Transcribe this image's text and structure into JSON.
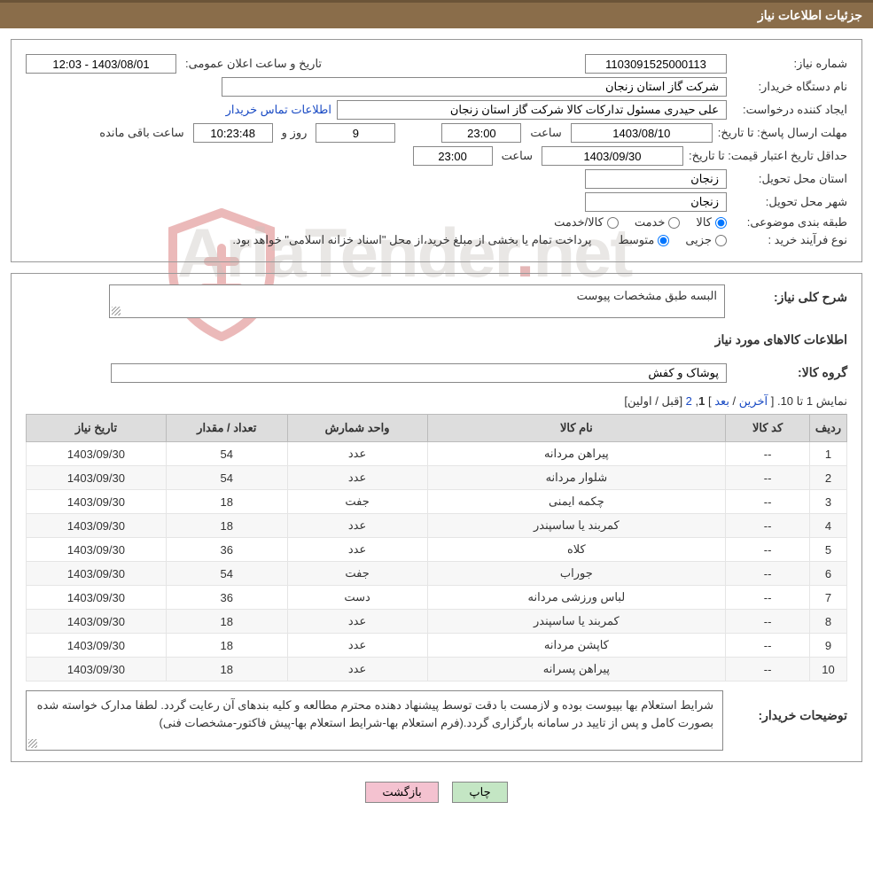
{
  "header": {
    "title": "جزئیات اطلاعات نیاز"
  },
  "form": {
    "need_number_label": "شماره نیاز:",
    "need_number": "1103091525000113",
    "announce_label": "تاریخ و ساعت اعلان عمومی:",
    "announce_value": "1403/08/01 - 12:03",
    "buyer_org_label": "نام دستگاه خریدار:",
    "buyer_org": "شرکت گاز استان زنجان",
    "requester_label": "ایجاد کننده درخواست:",
    "requester": "علی حیدری مسئول تدارکات کالا شرکت گاز استان زنجان",
    "buyer_contact_link": "اطلاعات تماس خریدار",
    "deadline_label": "مهلت ارسال پاسخ: تا تاریخ:",
    "deadline_date": "1403/08/10",
    "hour_label": "ساعت",
    "deadline_time": "23:00",
    "days_remaining": "9",
    "days_and_label": "روز و",
    "time_remaining": "10:23:48",
    "remaining_label": "ساعت باقی مانده",
    "validity_label": "حداقل تاریخ اعتبار قیمت: تا تاریخ:",
    "validity_date": "1403/09/30",
    "validity_time": "23:00",
    "province_label": "استان محل تحویل:",
    "province": "زنجان",
    "city_label": "شهر محل تحویل:",
    "city": "زنجان",
    "category_label": "طبقه بندی موضوعی:",
    "cat_goods": "کالا",
    "cat_service": "خدمت",
    "cat_goods_service": "کالا/خدمت",
    "process_label": "نوع فرآیند خرید :",
    "proc_partial": "جزیی",
    "proc_medium": "متوسط",
    "payment_note": "پرداخت تمام یا بخشی از مبلغ خرید،از محل \"اسناد خزانه اسلامی\" خواهد بود."
  },
  "desc": {
    "general_label": "شرح کلی نیاز:",
    "general_text": "البسه طبق مشخصات پیوست",
    "items_label": "اطلاعات کالاهای مورد نیاز",
    "group_label": "گروه کالا:",
    "group_value": "پوشاک و کفش"
  },
  "paging": {
    "prefix": "نمایش 1 تا 10. [ ",
    "last": "آخرین",
    "sep1": " / ",
    "next": "بعد",
    "sep2": " ] ",
    "current": "1",
    "comma": ", ",
    "page2": "2",
    "sep3": " [",
    "prev": "قبل",
    "sep4": " / ",
    "first": "اولین",
    "close": "]"
  },
  "table": {
    "headers": {
      "row": "ردیف",
      "code": "کد کالا",
      "name": "نام کالا",
      "unit": "واحد شمارش",
      "qty": "تعداد / مقدار",
      "date": "تاریخ نیاز"
    },
    "rows": [
      {
        "n": "1",
        "code": "--",
        "name": "پیراهن مردانه",
        "unit": "عدد",
        "qty": "54",
        "date": "1403/09/30"
      },
      {
        "n": "2",
        "code": "--",
        "name": "شلوار مردانه",
        "unit": "عدد",
        "qty": "54",
        "date": "1403/09/30"
      },
      {
        "n": "3",
        "code": "--",
        "name": "چکمه ایمنی",
        "unit": "جفت",
        "qty": "18",
        "date": "1403/09/30"
      },
      {
        "n": "4",
        "code": "--",
        "name": "کمربند یا ساسپندر",
        "unit": "عدد",
        "qty": "18",
        "date": "1403/09/30"
      },
      {
        "n": "5",
        "code": "--",
        "name": "کلاه",
        "unit": "عدد",
        "qty": "36",
        "date": "1403/09/30"
      },
      {
        "n": "6",
        "code": "--",
        "name": "جوراب",
        "unit": "جفت",
        "qty": "54",
        "date": "1403/09/30"
      },
      {
        "n": "7",
        "code": "--",
        "name": "لباس ورزشی مردانه",
        "unit": "دست",
        "qty": "36",
        "date": "1403/09/30"
      },
      {
        "n": "8",
        "code": "--",
        "name": "کمربند یا ساسپندر",
        "unit": "عدد",
        "qty": "18",
        "date": "1403/09/30"
      },
      {
        "n": "9",
        "code": "--",
        "name": "کاپشن مردانه",
        "unit": "عدد",
        "qty": "18",
        "date": "1403/09/30"
      },
      {
        "n": "10",
        "code": "--",
        "name": "پیراهن پسرانه",
        "unit": "عدد",
        "qty": "18",
        "date": "1403/09/30"
      }
    ]
  },
  "buyer_notes": {
    "label": "توضیحات خریدار:",
    "text": "شرایط استعلام بها بپیوست بوده و لازمست با دقت توسط پیشنهاد دهنده محترم مطالعه و کلیه بندهای آن رعایت گردد. لطفا مدارک خواسته شده بصورت کامل و پس از تایید در سامانه بارگزاری گردد.(فرم استعلام بها-شرایط استعلام بها-پیش فاکتور-مشخصات فنی)"
  },
  "buttons": {
    "print": "چاپ",
    "back": "بازگشت"
  },
  "colors": {
    "header_bg": "#8a6d4a",
    "header_border": "#6b5438",
    "th_bg": "#dddddd",
    "link": "#1a4bc4",
    "btn_print": "#c4e6c4",
    "btn_back": "#f4c2d0"
  }
}
